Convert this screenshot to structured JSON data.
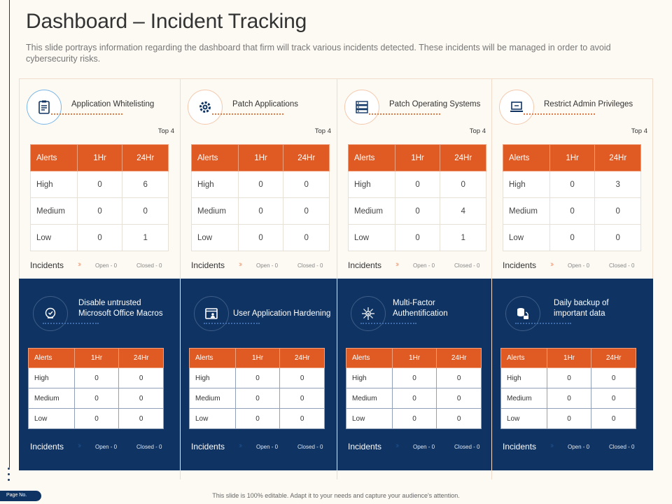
{
  "title": "Dashboard – Incident Tracking",
  "subtitle": "This slide portrays information regarding the dashboard that firm will track various incidents detected. These incidents will be managed in order to avoid cybersecurity risks.",
  "table_header": [
    "Alerts",
    "1Hr",
    "24Hr"
  ],
  "row_labels": [
    "High",
    "Medium",
    "Low"
  ],
  "top4": "Top 4",
  "incidents_label": "Incidents",
  "open_label": "Open - 0",
  "closed_label": "Closed - 0",
  "top_cards": [
    {
      "title": "Application Whitelisting",
      "icon": "clipboard-icon",
      "rows": [
        [
          "0",
          "6"
        ],
        [
          "0",
          "0"
        ],
        [
          "0",
          "1"
        ]
      ]
    },
    {
      "title": "Patch Applications",
      "icon": "gear-icon",
      "rows": [
        [
          "0",
          "0"
        ],
        [
          "0",
          "0"
        ],
        [
          "0",
          "0"
        ]
      ]
    },
    {
      "title": "Patch Operating Systems",
      "icon": "server-icon",
      "rows": [
        [
          "0",
          "0"
        ],
        [
          "0",
          "4"
        ],
        [
          "0",
          "1"
        ]
      ]
    },
    {
      "title": "Restrict Admin Privileges",
      "icon": "laptop-icon",
      "rows": [
        [
          "0",
          "3"
        ],
        [
          "0",
          "0"
        ],
        [
          "0",
          "0"
        ]
      ]
    }
  ],
  "bottom_cards": [
    {
      "title_lines": [
        "Disable untrusted",
        "Microsoft Office Macros"
      ],
      "icon": "shield-icon",
      "rows": [
        [
          "0",
          "0"
        ],
        [
          "0",
          "0"
        ],
        [
          "0",
          "0"
        ]
      ]
    },
    {
      "title_lines": [
        "User Application Hardening"
      ],
      "icon": "user-window-icon",
      "rows": [
        [
          "0",
          "0"
        ],
        [
          "0",
          "0"
        ],
        [
          "0",
          "0"
        ]
      ]
    },
    {
      "title_lines": [
        "Multi-Factor",
        "Authentification"
      ],
      "icon": "network-lock-icon",
      "rows": [
        [
          "0",
          "0"
        ],
        [
          "0",
          "0"
        ],
        [
          "0",
          "0"
        ]
      ]
    },
    {
      "title_lines": [
        "Daily backup of",
        "important data"
      ],
      "icon": "database-backup-icon",
      "rows": [
        [
          "0",
          "0"
        ],
        [
          "0",
          "0"
        ],
        [
          "0",
          "0"
        ]
      ]
    }
  ],
  "page_no": "Page No.",
  "footer": "This slide is 100% editable. Adapt it to your needs and capture your audience's attention.",
  "colors": {
    "accent": "#e05b23",
    "navy": "#0f3463",
    "background": "#fdfaf3"
  }
}
